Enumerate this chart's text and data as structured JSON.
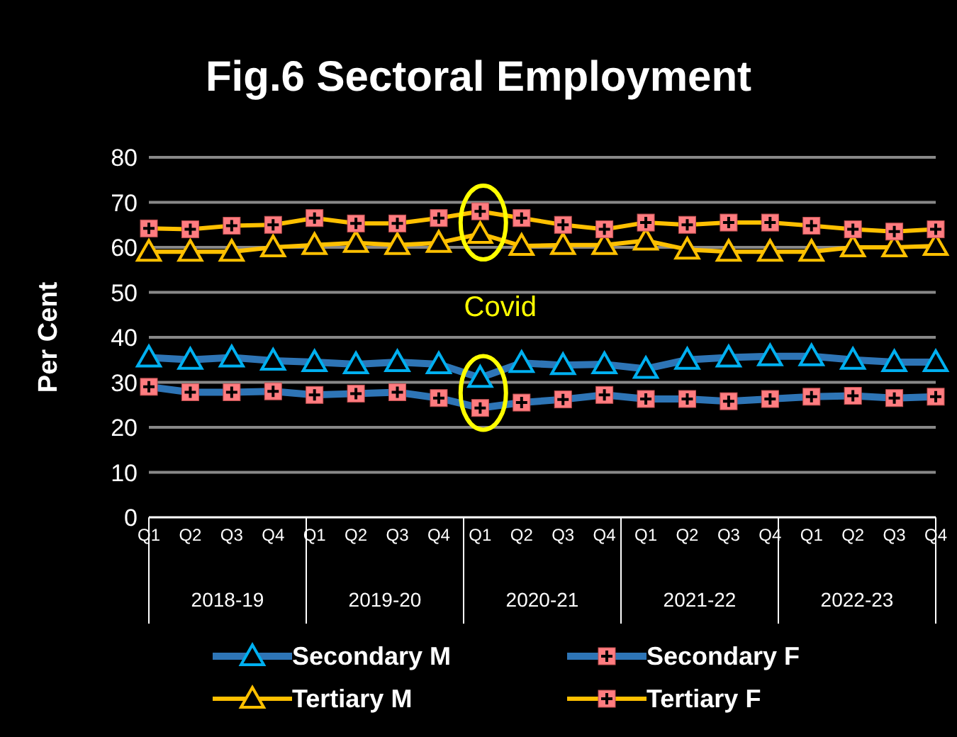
{
  "chart_data": {
    "type": "line",
    "title": "Fig.6 Sectoral Employment",
    "ylabel": "Per Cent",
    "categories": [
      "Q1",
      "Q2",
      "Q3",
      "Q4",
      "Q1",
      "Q2",
      "Q3",
      "Q4",
      "Q1",
      "Q2",
      "Q3",
      "Q4",
      "Q1",
      "Q2",
      "Q3",
      "Q4",
      "Q1",
      "Q2",
      "Q3",
      "Q4"
    ],
    "annotations": [
      "Covid",
      "2018-19",
      "2019-20",
      "2020-21",
      "2021-22",
      "2022-23"
    ],
    "ylim": [
      0,
      80
    ],
    "yticks": [
      0,
      10,
      20,
      30,
      40,
      50,
      60,
      70,
      80
    ],
    "grid": "y",
    "legend": "bottom",
    "line_style": "solid",
    "series": [
      {
        "name": "Secondary M",
        "color": "#2e75b6",
        "marker": "triangle",
        "values": [
          35.5,
          35,
          35.5,
          34.8,
          34.5,
          34,
          34.5,
          34,
          31,
          34.3,
          33.8,
          34,
          33,
          35,
          35.5,
          35.8,
          35.8,
          35,
          34.5,
          34.5
        ]
      },
      {
        "name": "Secondary F",
        "color": "#2e75b6",
        "marker": "square",
        "values": [
          29,
          27.8,
          27.8,
          28,
          27.2,
          27.5,
          27.8,
          26.5,
          24.3,
          25.5,
          26.2,
          27.2,
          26.3,
          26.3,
          25.8,
          26.3,
          26.8,
          27,
          26.5,
          26.8
        ]
      },
      {
        "name": "Tertiary M",
        "color": "#ffc000",
        "marker": "triangle",
        "values": [
          59,
          59,
          59,
          60,
          60.5,
          61,
          60.5,
          61,
          63,
          60.3,
          60.5,
          60.5,
          61.5,
          59.5,
          59,
          59,
          59,
          60,
          60,
          60.3
        ]
      },
      {
        "name": "Tertiary F",
        "color": "#ffc000",
        "marker": "square",
        "values": [
          64.2,
          64,
          64.8,
          65,
          66.5,
          65.3,
          65.3,
          66.5,
          68,
          66.5,
          65,
          64,
          65.5,
          65,
          65.5,
          65.5,
          64.8,
          64,
          63.5,
          64
        ]
      }
    ]
  }
}
